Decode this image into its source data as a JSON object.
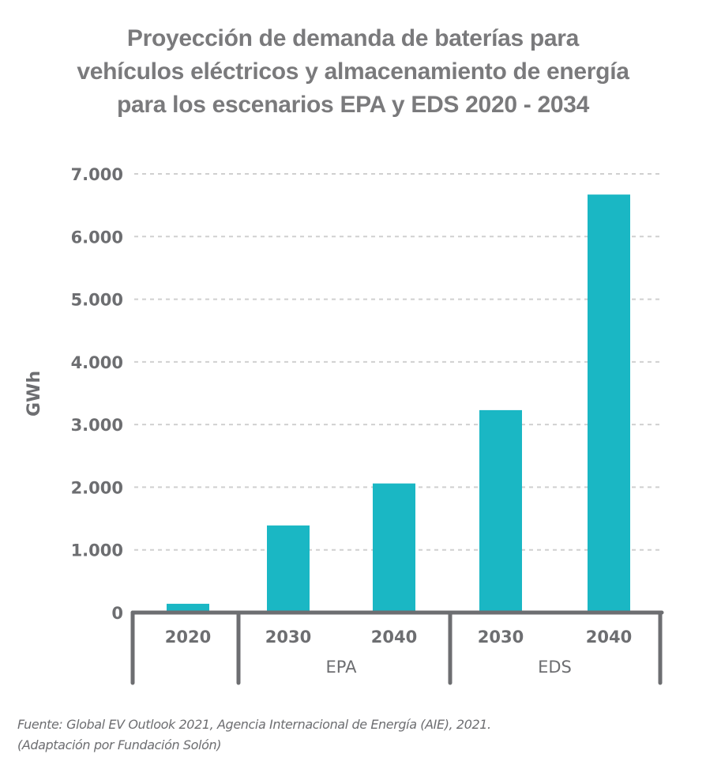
{
  "chart_data": {
    "type": "bar",
    "title_lines": [
      "Proyección de demanda de baterías para",
      "vehículos eléctricos y almacenamiento de energía",
      "para los escenarios EPA y EDS 2020 - 2034"
    ],
    "xlabel": "",
    "ylabel": "GWh",
    "ylim": [
      0,
      7000
    ],
    "yticks": [
      0,
      1000,
      2000,
      3000,
      4000,
      5000,
      6000,
      7000
    ],
    "ytick_labels": [
      "0",
      "1.000",
      "2.000",
      "3.000",
      "4.000",
      "5.000",
      "6.000",
      "7.000"
    ],
    "grid": true,
    "categories": [
      "2020",
      "2030",
      "2040",
      "2030",
      "2040"
    ],
    "groups": [
      {
        "label": "",
        "categories": [
          0
        ]
      },
      {
        "label": "EPA",
        "categories": [
          1,
          2
        ]
      },
      {
        "label": "EDS",
        "categories": [
          3,
          4
        ]
      }
    ],
    "values": [
      140,
      1390,
      2060,
      3230,
      6670
    ],
    "bar_color": "#1ab7c4",
    "legend": "none"
  },
  "source": {
    "line1": "Fuente: Global EV Outlook 2021, Agencia Internacional de Energía (AIE), 2021.",
    "line2": "(Adaptación por Fundación Solón)"
  }
}
